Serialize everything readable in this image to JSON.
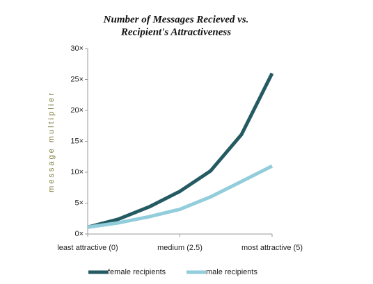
{
  "chart_data": {
    "type": "line",
    "title": [
      "Number of Messages Recieved  vs.",
      "Recipient's Attractiveness"
    ],
    "y_label": "message multiplier",
    "x": [
      0,
      0.83,
      1.67,
      2.5,
      3.33,
      4.17,
      5
    ],
    "series": [
      {
        "name": "female recipients",
        "color": "#245a62",
        "values": [
          1.1,
          2.4,
          4.4,
          6.9,
          10.2,
          16.1,
          26.0
        ]
      },
      {
        "name": "male recipients",
        "color": "#92cddc",
        "values": [
          1.1,
          1.8,
          2.8,
          4.0,
          6.0,
          8.5,
          11.0
        ]
      }
    ],
    "xlim": [
      0,
      5
    ],
    "xticks": [
      {
        "value": 0,
        "label": "least attractive (0)"
      },
      {
        "value": 2.5,
        "label": "medium (2.5)"
      },
      {
        "value": 5,
        "label": "most attractive  (5)"
      }
    ],
    "ylim": [
      0,
      30
    ],
    "yticks": [
      {
        "value": 0,
        "label": "0×"
      },
      {
        "value": 5,
        "label": "5×"
      },
      {
        "value": 10,
        "label": "10×"
      },
      {
        "value": 15,
        "label": "15×"
      },
      {
        "value": 20,
        "label": "20×"
      },
      {
        "value": 25,
        "label": "25×"
      },
      {
        "value": 30,
        "label": "30×"
      }
    ],
    "legend": "bottom"
  }
}
